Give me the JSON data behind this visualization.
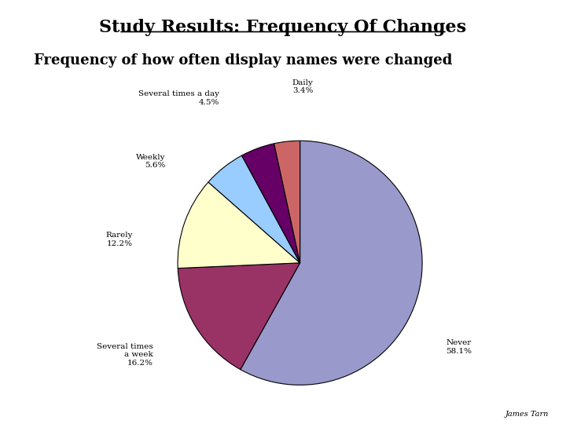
{
  "title": "Study Results: Frequency Of Changes",
  "subtitle": "Frequency of how often display names were changed",
  "footer": "James Tarn",
  "labels": [
    "Never",
    "Several times\na week",
    "Rarely",
    "Weekly",
    "Several times a day",
    "Daily"
  ],
  "values": [
    58.1,
    16.2,
    12.2,
    5.6,
    4.5,
    3.4
  ],
  "colors": [
    "#9999cc",
    "#993366",
    "#ffffcc",
    "#99ccff",
    "#660066",
    "#cc6666"
  ],
  "background_color": "#ffffff"
}
